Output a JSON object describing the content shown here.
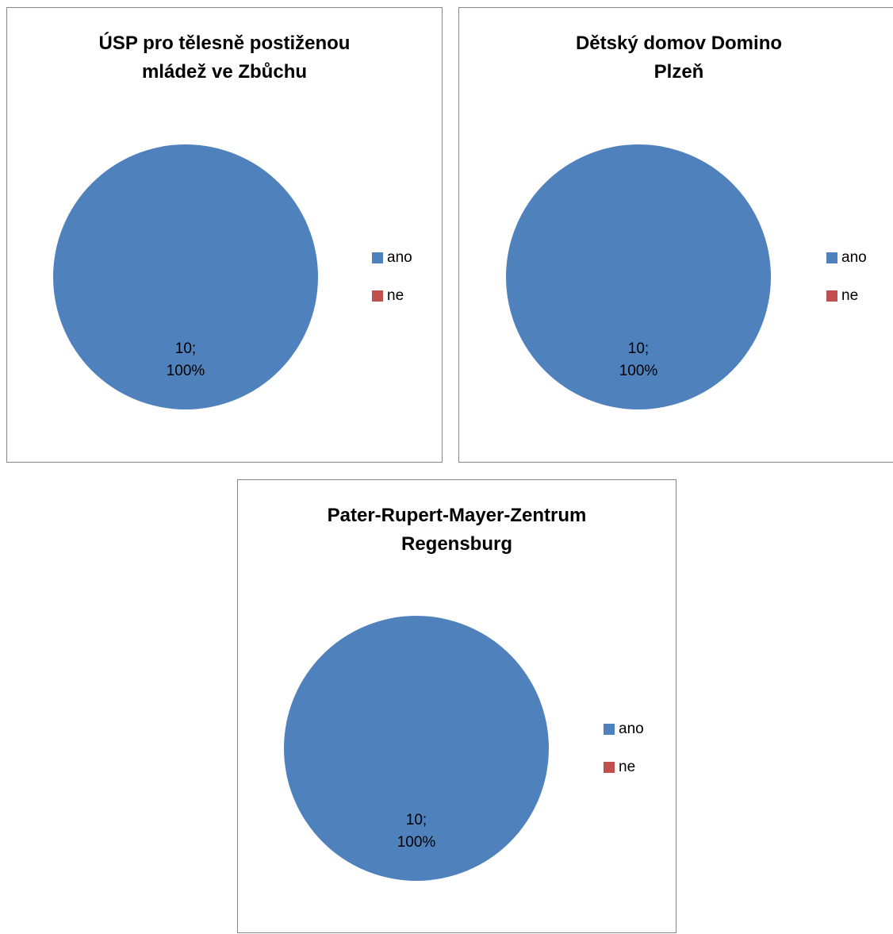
{
  "chart_data": [
    {
      "type": "pie",
      "title_lines": [
        "ÚSP pro tělesně postiženou",
        "mládež ve Zbůchu"
      ],
      "slices": [
        {
          "name": "ano",
          "value": 10,
          "label_line1": "10;",
          "label_line2": "100%",
          "color": "#4F81BD"
        },
        {
          "name": "ne",
          "value": 0,
          "color": "#C0504D"
        }
      ],
      "legend_position": "right"
    },
    {
      "type": "pie",
      "title_lines": [
        "Dětský domov Domino",
        "Plzeň"
      ],
      "slices": [
        {
          "name": "ano",
          "value": 10,
          "label_line1": "10;",
          "label_line2": "100%",
          "color": "#4F81BD"
        },
        {
          "name": "ne",
          "value": 0,
          "color": "#C0504D"
        }
      ],
      "legend_position": "right"
    },
    {
      "type": "pie",
      "title_lines": [
        "Pater-Rupert-Mayer-Zentrum",
        "Regensburg"
      ],
      "slices": [
        {
          "name": "ano",
          "value": 10,
          "label_line1": "10;",
          "label_line2": "100%",
          "color": "#4F81BD"
        },
        {
          "name": "ne",
          "value": 0,
          "color": "#C0504D"
        }
      ],
      "legend_position": "right"
    }
  ]
}
